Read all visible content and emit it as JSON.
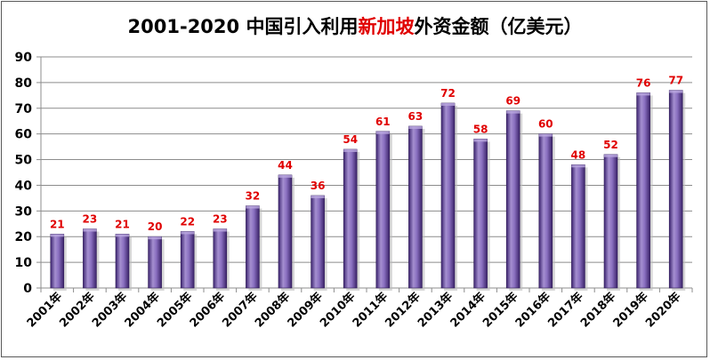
{
  "chart_data": {
    "type": "bar",
    "title_prefix": "2001-2020 中国引入利用",
    "title_highlight": "新加坡",
    "title_suffix": "外资金额（亿美元）",
    "categories": [
      "2001年",
      "2002年",
      "2003年",
      "2004年",
      "2005年",
      "2006年",
      "2007年",
      "2008年",
      "2009年",
      "2010年",
      "2011年",
      "2012年",
      "2013年",
      "2014年",
      "2015年",
      "2016年",
      "2017年",
      "2018年",
      "2019年",
      "2020年"
    ],
    "values": [
      21,
      23,
      21,
      20,
      22,
      23,
      32,
      44,
      36,
      54,
      61,
      63,
      72,
      58,
      69,
      60,
      48,
      52,
      76,
      77
    ],
    "value_labels": [
      "21",
      "23",
      "21",
      "20",
      "22",
      "23",
      "32",
      "44",
      "36",
      "54",
      "61",
      "63",
      "72",
      "58",
      "69",
      "60",
      "48",
      "52",
      "76",
      "77"
    ],
    "ylim": [
      0,
      90
    ],
    "yticks": [
      "0",
      "10",
      "20",
      "30",
      "40",
      "50",
      "60",
      "70",
      "80",
      "90"
    ],
    "grid": true,
    "legend": "none",
    "colors": {
      "bar_light": "#a58fd0",
      "bar_dark": "#4a2f7e",
      "label": "#e00000",
      "grid": "#8c8c8c"
    }
  }
}
